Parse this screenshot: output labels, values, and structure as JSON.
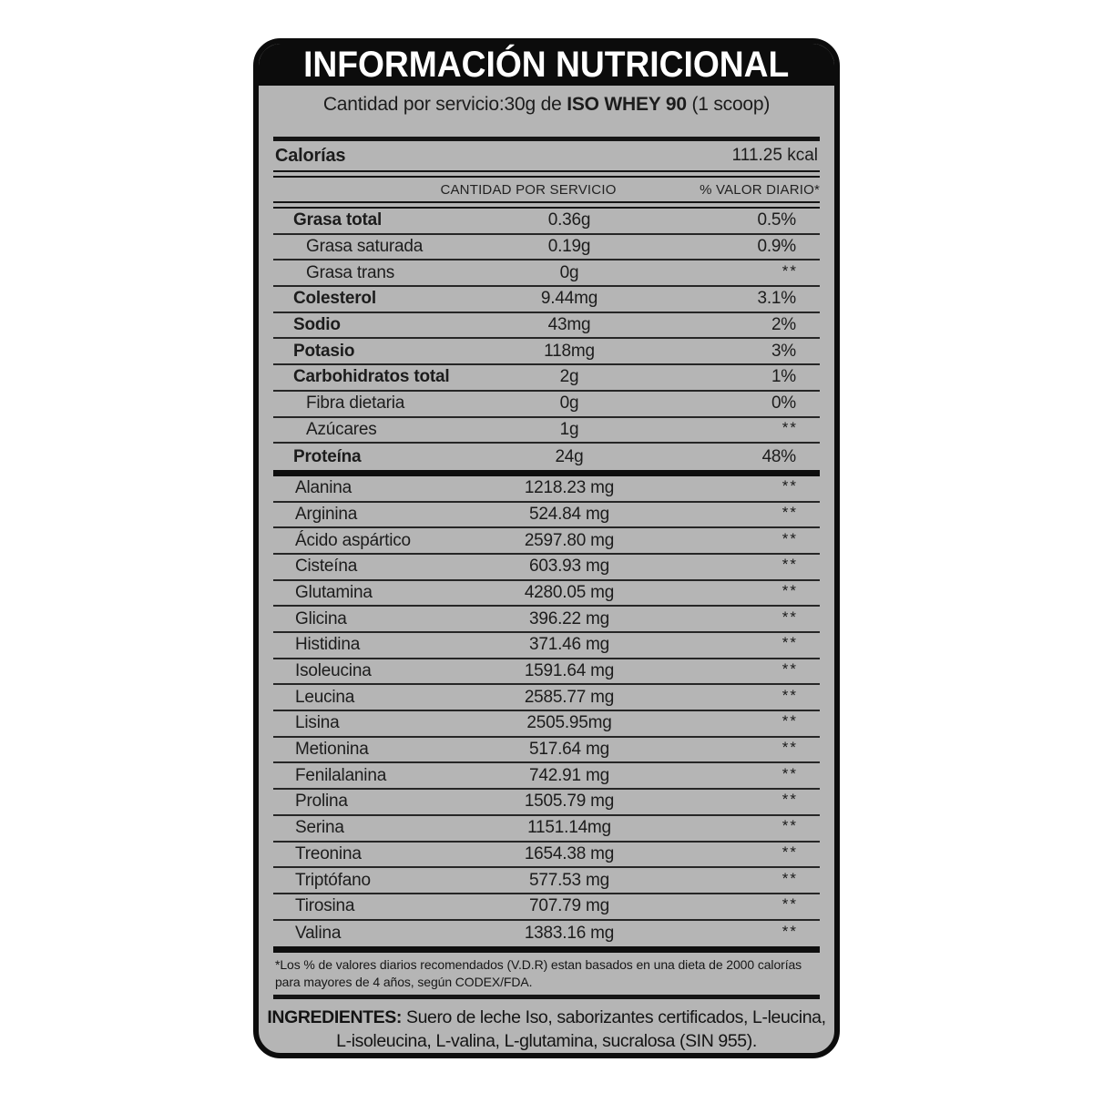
{
  "colors": {
    "page_background": "#ffffff",
    "label_background": "#b5b5b5",
    "header_background": "#0c0c0c",
    "text": "#1c1c1c"
  },
  "label": {
    "title": "INFORMACIÓN NUTRICIONAL",
    "serving": {
      "prefix": "Cantidad por servicio:30g de ",
      "product": "ISO WHEY 90",
      "suffix": " (1 scoop)"
    },
    "calories": {
      "name": "Calorías",
      "value": "111.25 kcal"
    },
    "columns": {
      "amount": "CANTIDAD POR SERVICIO",
      "dv": "% VALOR DIARIO*"
    },
    "nutrients": [
      {
        "name": "Grasa total",
        "amount": "0.36g",
        "dv": "0.5%",
        "style": "bold"
      },
      {
        "name": "Grasa saturada",
        "amount": "0.19g",
        "dv": "0.9%",
        "style": "indent"
      },
      {
        "name": "Grasa trans",
        "amount": "0g",
        "dv": "**",
        "style": "indent"
      },
      {
        "name": "Colesterol",
        "amount": "9.44mg",
        "dv": "3.1%",
        "style": "bold"
      },
      {
        "name": "Sodio",
        "amount": "43mg",
        "dv": "2%",
        "style": "bold"
      },
      {
        "name": "Potasio",
        "amount": "118mg",
        "dv": "3%",
        "style": "bold"
      },
      {
        "name": "Carbohidratos total",
        "amount": "2g",
        "dv": "1%",
        "style": "bold"
      },
      {
        "name": "Fibra dietaria",
        "amount": "0g",
        "dv": "0%",
        "style": "indent"
      },
      {
        "name": "Azúcares",
        "amount": "1g",
        "dv": "**",
        "style": "indent"
      },
      {
        "name": "Proteína",
        "amount": "24g",
        "dv": "48%",
        "style": "bold"
      }
    ],
    "amino_acids": [
      {
        "name": "Alanina",
        "amount": "1218.23 mg",
        "dv": "**"
      },
      {
        "name": "Arginina",
        "amount": "524.84 mg",
        "dv": "**"
      },
      {
        "name": "Ácido aspártico",
        "amount": "2597.80 mg",
        "dv": "**"
      },
      {
        "name": "Cisteína",
        "amount": "603.93 mg",
        "dv": "**"
      },
      {
        "name": "Glutamina",
        "amount": "4280.05 mg",
        "dv": "**"
      },
      {
        "name": "Glicina",
        "amount": "396.22 mg",
        "dv": "**"
      },
      {
        "name": "Histidina",
        "amount": "371.46 mg",
        "dv": "**"
      },
      {
        "name": "Isoleucina",
        "amount": "1591.64 mg",
        "dv": "**"
      },
      {
        "name": "Leucina",
        "amount": "2585.77 mg",
        "dv": "**"
      },
      {
        "name": "Lisina",
        "amount": "2505.95mg",
        "dv": "**"
      },
      {
        "name": "Metionina",
        "amount": "517.64 mg",
        "dv": "**"
      },
      {
        "name": "Fenilalanina",
        "amount": "742.91 mg",
        "dv": "**"
      },
      {
        "name": "Prolina",
        "amount": "1505.79 mg",
        "dv": "**"
      },
      {
        "name": "Serina",
        "amount": "1151.14mg",
        "dv": "**"
      },
      {
        "name": "Treonina",
        "amount": "1654.38 mg",
        "dv": "**"
      },
      {
        "name": "Triptófano",
        "amount": "577.53 mg",
        "dv": "**"
      },
      {
        "name": "Tirosina",
        "amount": "707.79 mg",
        "dv": "**"
      },
      {
        "name": "Valina",
        "amount": "1383.16 mg",
        "dv": "**"
      }
    ],
    "footnote": "*Los % de valores diarios recomendados (V.D.R) estan basados en una dieta de 2000 calorías para mayores de 4 años, según CODEX/FDA.",
    "ingredients": {
      "label": "INGREDIENTES:",
      "text": " Suero de leche Iso, saborizantes certificados, L-leucina, L-isoleucina, L-valina, L-glutamina, sucralosa (SIN 955)."
    }
  }
}
